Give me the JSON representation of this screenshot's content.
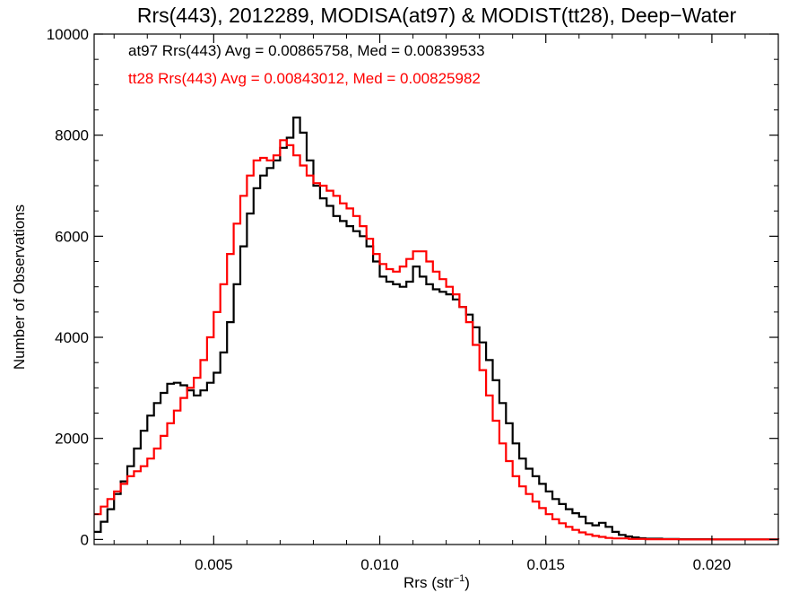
{
  "chart_data": {
    "type": "line",
    "step": true,
    "title": "Rrs(443), 2012289, MODISA(at97) & MODIST(tt28), Deep−Water",
    "xlabel": "Rrs (str",
    "xlabel_sup": "−1",
    "xlabel_close": ")",
    "ylabel": "Number of Observations",
    "xlim": [
      0.0014,
      0.022
    ],
    "ylim": [
      -100,
      10000
    ],
    "x_ticks": [
      0.005,
      0.01,
      0.015,
      0.02
    ],
    "x_tick_labels": [
      "0.005",
      "0.010",
      "0.015",
      "0.020"
    ],
    "y_ticks": [
      0,
      2000,
      4000,
      6000,
      8000,
      10000
    ],
    "y_tick_labels": [
      "0",
      "2000",
      "4000",
      "6000",
      "8000",
      "10000"
    ],
    "legend_position": "top-left",
    "grid": false,
    "series": [
      {
        "name": "at97",
        "color": "#000000",
        "label": "at97 Rrs(443) Avg = 0.00865758, Med = 0.00839533",
        "points": [
          [
            0.0014,
            150
          ],
          [
            0.0016,
            350
          ],
          [
            0.0018,
            600
          ],
          [
            0.002,
            900
          ],
          [
            0.0022,
            1150
          ],
          [
            0.0024,
            1450
          ],
          [
            0.0026,
            1800
          ],
          [
            0.0028,
            2150
          ],
          [
            0.003,
            2450
          ],
          [
            0.0032,
            2700
          ],
          [
            0.0034,
            2900
          ],
          [
            0.0036,
            3080
          ],
          [
            0.0038,
            3100
          ],
          [
            0.004,
            3050
          ],
          [
            0.0042,
            2950
          ],
          [
            0.0044,
            2850
          ],
          [
            0.0046,
            2950
          ],
          [
            0.0048,
            3100
          ],
          [
            0.005,
            3300
          ],
          [
            0.0052,
            3700
          ],
          [
            0.0054,
            4300
          ],
          [
            0.0056,
            5050
          ],
          [
            0.0058,
            5800
          ],
          [
            0.006,
            6450
          ],
          [
            0.0062,
            6950
          ],
          [
            0.0064,
            7200
          ],
          [
            0.0066,
            7350
          ],
          [
            0.0068,
            7500
          ],
          [
            0.007,
            7750
          ],
          [
            0.0072,
            7950
          ],
          [
            0.0074,
            8350
          ],
          [
            0.0076,
            8050
          ],
          [
            0.0078,
            7500
          ],
          [
            0.008,
            7000
          ],
          [
            0.0082,
            6750
          ],
          [
            0.0084,
            6600
          ],
          [
            0.0086,
            6400
          ],
          [
            0.0088,
            6300
          ],
          [
            0.009,
            6200
          ],
          [
            0.0092,
            6100
          ],
          [
            0.0094,
            6000
          ],
          [
            0.0096,
            5800
          ],
          [
            0.0098,
            5500
          ],
          [
            0.01,
            5200
          ],
          [
            0.0102,
            5100
          ],
          [
            0.0104,
            5050
          ],
          [
            0.0106,
            5000
          ],
          [
            0.0108,
            5100
          ],
          [
            0.011,
            5400
          ],
          [
            0.0112,
            5200
          ],
          [
            0.0114,
            5050
          ],
          [
            0.0116,
            4950
          ],
          [
            0.0118,
            4900
          ],
          [
            0.012,
            4850
          ],
          [
            0.0122,
            4750
          ],
          [
            0.0124,
            4600
          ],
          [
            0.0126,
            4450
          ],
          [
            0.0128,
            4200
          ],
          [
            0.013,
            3900
          ],
          [
            0.0132,
            3550
          ],
          [
            0.0134,
            3150
          ],
          [
            0.0136,
            2700
          ],
          [
            0.0138,
            2300
          ],
          [
            0.014,
            1900
          ],
          [
            0.0142,
            1600
          ],
          [
            0.0144,
            1400
          ],
          [
            0.0146,
            1250
          ],
          [
            0.0148,
            1100
          ],
          [
            0.015,
            950
          ],
          [
            0.0152,
            800
          ],
          [
            0.0154,
            700
          ],
          [
            0.0156,
            600
          ],
          [
            0.0158,
            520
          ],
          [
            0.016,
            450
          ],
          [
            0.0162,
            320
          ],
          [
            0.0164,
            280
          ],
          [
            0.0166,
            330
          ],
          [
            0.0168,
            250
          ],
          [
            0.017,
            150
          ],
          [
            0.0172,
            90
          ],
          [
            0.0174,
            60
          ],
          [
            0.0176,
            40
          ],
          [
            0.0178,
            25
          ],
          [
            0.018,
            15
          ],
          [
            0.0185,
            8
          ],
          [
            0.019,
            4
          ],
          [
            0.02,
            2
          ],
          [
            0.021,
            1
          ],
          [
            0.022,
            0
          ]
        ]
      },
      {
        "name": "tt28",
        "color": "#ff0000",
        "label": "tt28 Rrs(443) Avg = 0.00843012, Med = 0.00825982",
        "points": [
          [
            0.0014,
            500
          ],
          [
            0.0016,
            650
          ],
          [
            0.0018,
            800
          ],
          [
            0.002,
            950
          ],
          [
            0.0022,
            1100
          ],
          [
            0.0024,
            1250
          ],
          [
            0.0026,
            1350
          ],
          [
            0.0028,
            1450
          ],
          [
            0.003,
            1600
          ],
          [
            0.0032,
            1800
          ],
          [
            0.0034,
            2050
          ],
          [
            0.0036,
            2300
          ],
          [
            0.0038,
            2550
          ],
          [
            0.004,
            2800
          ],
          [
            0.0042,
            3000
          ],
          [
            0.0044,
            3200
          ],
          [
            0.0046,
            3550
          ],
          [
            0.0048,
            4000
          ],
          [
            0.005,
            4500
          ],
          [
            0.0052,
            5050
          ],
          [
            0.0054,
            5650
          ],
          [
            0.0056,
            6250
          ],
          [
            0.0058,
            6800
          ],
          [
            0.006,
            7200
          ],
          [
            0.0062,
            7500
          ],
          [
            0.0064,
            7550
          ],
          [
            0.0066,
            7500
          ],
          [
            0.0068,
            7600
          ],
          [
            0.007,
            7900
          ],
          [
            0.0072,
            7800
          ],
          [
            0.0074,
            7600
          ],
          [
            0.0076,
            7400
          ],
          [
            0.0078,
            7200
          ],
          [
            0.008,
            7050
          ],
          [
            0.0082,
            7000
          ],
          [
            0.0084,
            6900
          ],
          [
            0.0086,
            6800
          ],
          [
            0.0088,
            6650
          ],
          [
            0.009,
            6550
          ],
          [
            0.0092,
            6400
          ],
          [
            0.0094,
            6200
          ],
          [
            0.0096,
            5950
          ],
          [
            0.0098,
            5650
          ],
          [
            0.01,
            5450
          ],
          [
            0.0102,
            5350
          ],
          [
            0.0104,
            5300
          ],
          [
            0.0106,
            5400
          ],
          [
            0.0108,
            5550
          ],
          [
            0.011,
            5700
          ],
          [
            0.0112,
            5700
          ],
          [
            0.0114,
            5500
          ],
          [
            0.0116,
            5300
          ],
          [
            0.0118,
            5150
          ],
          [
            0.012,
            5000
          ],
          [
            0.0122,
            4850
          ],
          [
            0.0124,
            4600
          ],
          [
            0.0126,
            4300
          ],
          [
            0.0128,
            3850
          ],
          [
            0.013,
            3350
          ],
          [
            0.0132,
            2850
          ],
          [
            0.0134,
            2350
          ],
          [
            0.0136,
            1900
          ],
          [
            0.0138,
            1550
          ],
          [
            0.014,
            1250
          ],
          [
            0.0142,
            1050
          ],
          [
            0.0144,
            900
          ],
          [
            0.0146,
            750
          ],
          [
            0.0148,
            620
          ],
          [
            0.015,
            500
          ],
          [
            0.0152,
            400
          ],
          [
            0.0154,
            320
          ],
          [
            0.0156,
            250
          ],
          [
            0.0158,
            190
          ],
          [
            0.016,
            140
          ],
          [
            0.0162,
            100
          ],
          [
            0.0164,
            70
          ],
          [
            0.0166,
            50
          ],
          [
            0.0168,
            30
          ],
          [
            0.017,
            20
          ],
          [
            0.0175,
            10
          ],
          [
            0.018,
            5
          ],
          [
            0.019,
            2
          ],
          [
            0.02,
            1
          ],
          [
            0.022,
            0
          ]
        ]
      }
    ]
  }
}
